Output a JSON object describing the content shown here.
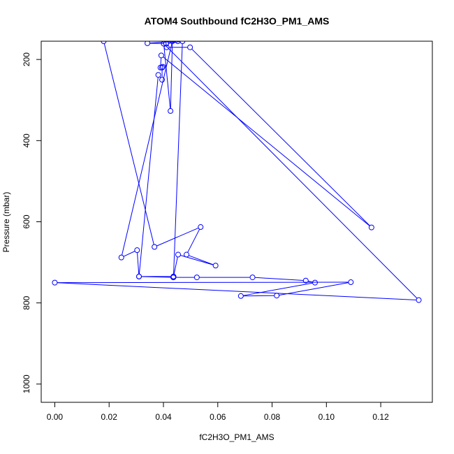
{
  "chart_data": {
    "type": "line",
    "title": "ATOM4 Southbound fC2H3O_PM1_AMS",
    "xlabel": "fC2H3O_PM1_AMS",
    "ylabel": "Pressure (mbar)",
    "xlim": [
      -0.005,
      0.139
    ],
    "ylim": [
      1045,
      155
    ],
    "y_reversed": true,
    "x_ticks": [
      0.0,
      0.02,
      0.04,
      0.06,
      0.08,
      0.1,
      0.12
    ],
    "x_tick_labels": [
      "0.00",
      "0.02",
      "0.04",
      "0.06",
      "0.08",
      "0.10",
      "0.12"
    ],
    "y_ticks": [
      200,
      400,
      600,
      800,
      1000
    ],
    "y_tick_labels": [
      "200",
      "400",
      "600",
      "800",
      "1000"
    ],
    "grid": false,
    "series": [
      {
        "color": "#0000ff",
        "marker": "open-circle",
        "x": [
          0.018,
          0.0367,
          0.0537,
          0.0485,
          0.0592,
          0.0454,
          0.0437,
          0.0437,
          0.047,
          0.041,
          0.0341,
          0.0453,
          0.041,
          0.0412,
          0.0498,
          0.1166,
          0.0392,
          0.0389,
          0.0398,
          0.0395,
          0.0395,
          0.0381,
          0.031,
          0.0303,
          0.0245,
          0.0433,
          0.0426,
          0.0401,
          0.134,
          0.0,
          0.109,
          0.0817,
          0.0685,
          0.0958,
          0.0924,
          0.0728,
          0.0523,
          0.0436,
          0.031,
          0.0437
        ],
        "y": [
          155,
          662,
          613,
          681,
          708,
          681,
          735,
          737,
          155,
          161,
          160,
          155,
          161,
          170,
          170,
          614,
          190,
          220,
          218,
          220,
          250,
          238,
          735,
          670,
          688,
          155,
          327,
          161,
          793,
          750,
          749,
          782,
          783,
          750,
          745,
          737,
          737,
          737,
          735,
          735
        ]
      }
    ]
  }
}
